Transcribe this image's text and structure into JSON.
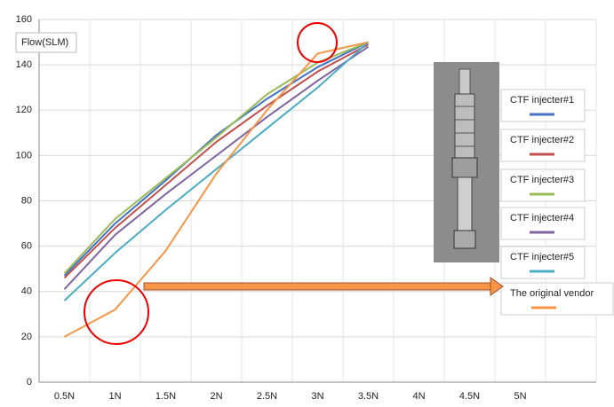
{
  "chart_data": {
    "type": "line",
    "y_label": "Flow(SLM)",
    "categories": [
      "0.5N",
      "1N",
      "1.5N",
      "2N",
      "2.5N",
      "3N",
      "3.5N",
      "4N",
      "4.5N",
      "5N",
      null
    ],
    "series": [
      {
        "name": "CTF injecter#1",
        "color": "#4472c4",
        "values": [
          47,
          70,
          89,
          109,
          125,
          139,
          150,
          null,
          null,
          null,
          null
        ]
      },
      {
        "name": "CTF injecter#2",
        "color": "#c0504d",
        "values": [
          46,
          68,
          87,
          106,
          122,
          137,
          149,
          null,
          null,
          null,
          null
        ]
      },
      {
        "name": "CTF injecter#3",
        "color": "#9bbb59",
        "values": [
          48,
          72,
          90,
          108,
          127,
          141,
          150,
          null,
          null,
          null,
          null
        ]
      },
      {
        "name": "CTF injecter#4",
        "color": "#8064a2",
        "values": [
          41,
          65,
          83,
          100,
          117,
          133,
          148,
          null,
          null,
          null,
          null
        ]
      },
      {
        "name": "CTF injecter#5",
        "color": "#4bacc6",
        "values": [
          36,
          57,
          76,
          94,
          112,
          130,
          150,
          null,
          null,
          null,
          null
        ]
      },
      {
        "name": "The original vendor",
        "color": "#f79646",
        "values": [
          20,
          32,
          58,
          92,
          120,
          145,
          150,
          null,
          null,
          null,
          null
        ]
      }
    ],
    "ylim": [
      0,
      160
    ],
    "yticks": [
      0,
      20,
      40,
      60,
      80,
      100,
      120,
      140,
      160
    ],
    "grid": true
  }
}
